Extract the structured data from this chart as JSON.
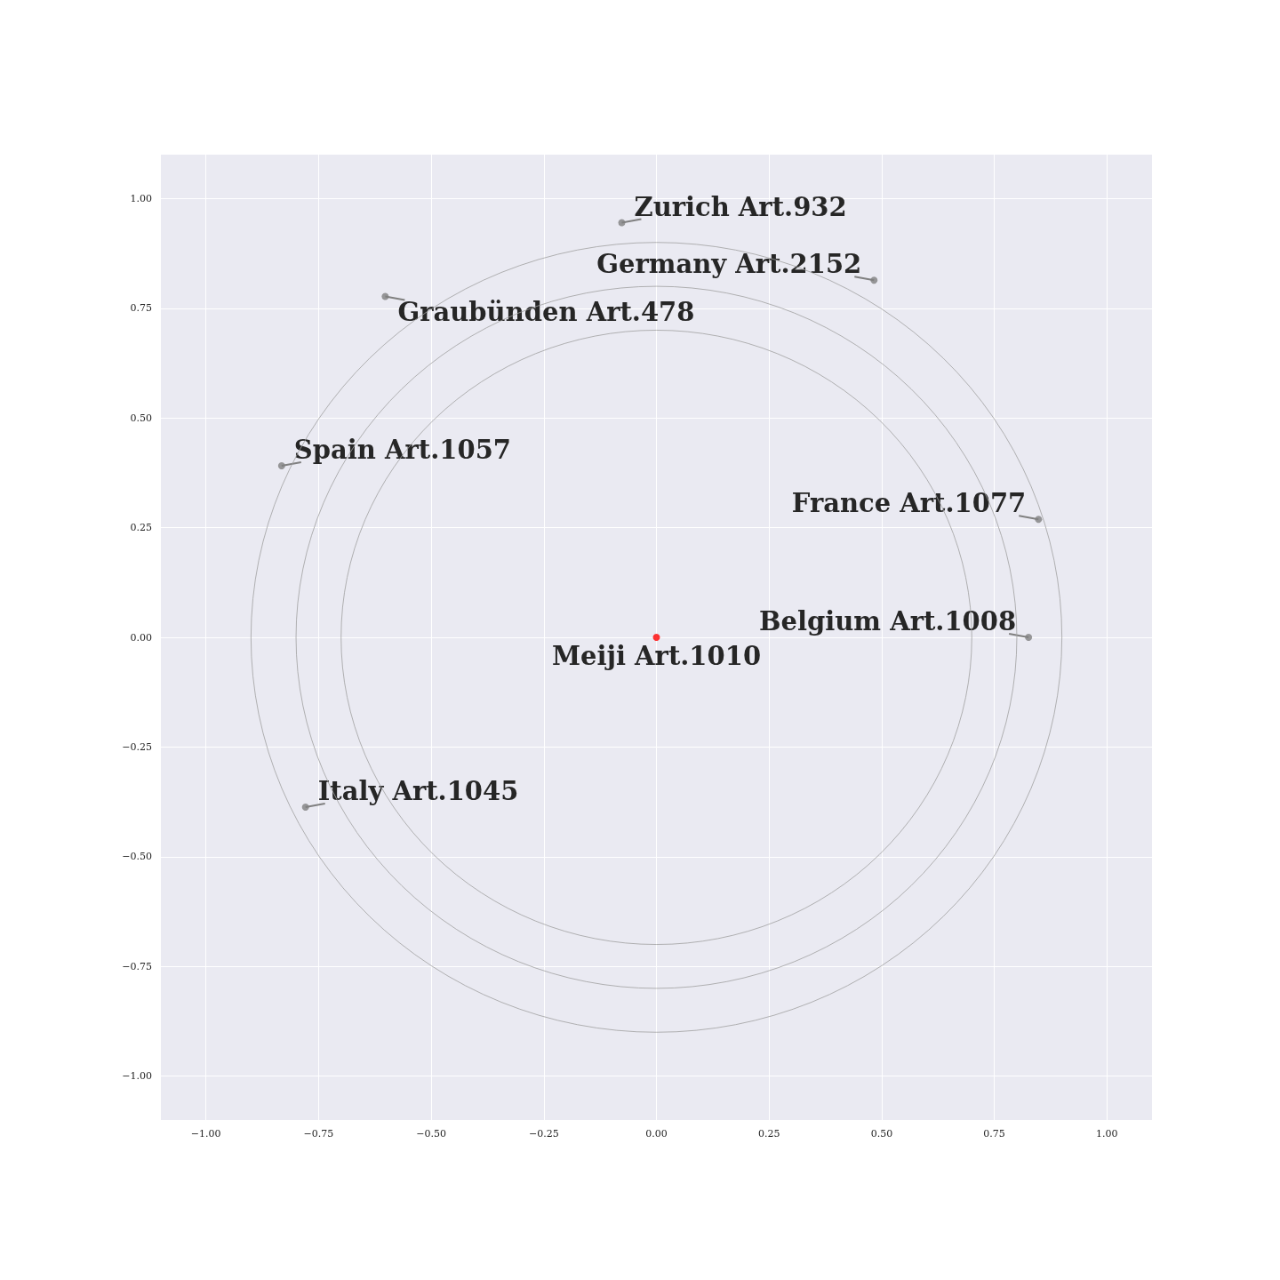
{
  "chart_data": {
    "type": "scatter",
    "xlim": [
      -1.1,
      1.1
    ],
    "ylim": [
      -1.1,
      1.1
    ],
    "xticks": [
      {
        "value": -1,
        "label": "−1.00"
      },
      {
        "value": -0.75,
        "label": "−0.75"
      },
      {
        "value": -0.5,
        "label": "−0.50"
      },
      {
        "value": -0.25,
        "label": "−0.25"
      },
      {
        "value": 0,
        "label": "0.00"
      },
      {
        "value": 0.25,
        "label": "0.25"
      },
      {
        "value": 0.5,
        "label": "0.50"
      },
      {
        "value": 0.75,
        "label": "0.75"
      },
      {
        "value": 1,
        "label": "1.00"
      }
    ],
    "yticks": [
      {
        "value": -1,
        "label": "−1.00"
      },
      {
        "value": -0.75,
        "label": "−0.75"
      },
      {
        "value": -0.5,
        "label": "−0.50"
      },
      {
        "value": -0.25,
        "label": "−0.25"
      },
      {
        "value": 0,
        "label": "0.00"
      },
      {
        "value": 0.25,
        "label": "0.25"
      },
      {
        "value": 0.5,
        "label": "0.50"
      },
      {
        "value": 0.75,
        "label": "0.75"
      },
      {
        "value": 1,
        "label": "1.00"
      }
    ],
    "grid": true,
    "series": [
      {
        "type": "scatter",
        "marker": "circle",
        "color": "#808080",
        "x": [
          -0.077,
          0.483,
          -0.602,
          -0.832,
          0.848,
          0.826,
          -0.779
        ],
        "values": [
          0.945,
          0.814,
          0.777,
          0.391,
          0.269,
          0,
          -0.387
        ]
      },
      {
        "type": "scatter",
        "marker": "circle",
        "color": "#ff0000",
        "x": [
          0
        ],
        "values": [
          0
        ]
      }
    ],
    "annotations": [
      {
        "text": "Zurich Art.932",
        "x": -0.077,
        "y": 0.945
      },
      {
        "text": "Germany Art.2152",
        "x": 0.483,
        "y": 0.814
      },
      {
        "text": "Graubünden Art.478",
        "x": -0.602,
        "y": 0.777
      },
      {
        "text": "Spain Art.1057",
        "x": -0.832,
        "y": 0.391
      },
      {
        "text": "France Art.1077",
        "x": 0.848,
        "y": 0.269
      },
      {
        "text": "Belgium Art.1008",
        "x": 0.826,
        "y": 0
      },
      {
        "text": "Meiji Art.1010",
        "x": 0,
        "y": 0
      },
      {
        "text": "Italy Art.1045",
        "x": -0.779,
        "y": -0.387
      }
    ]
  }
}
